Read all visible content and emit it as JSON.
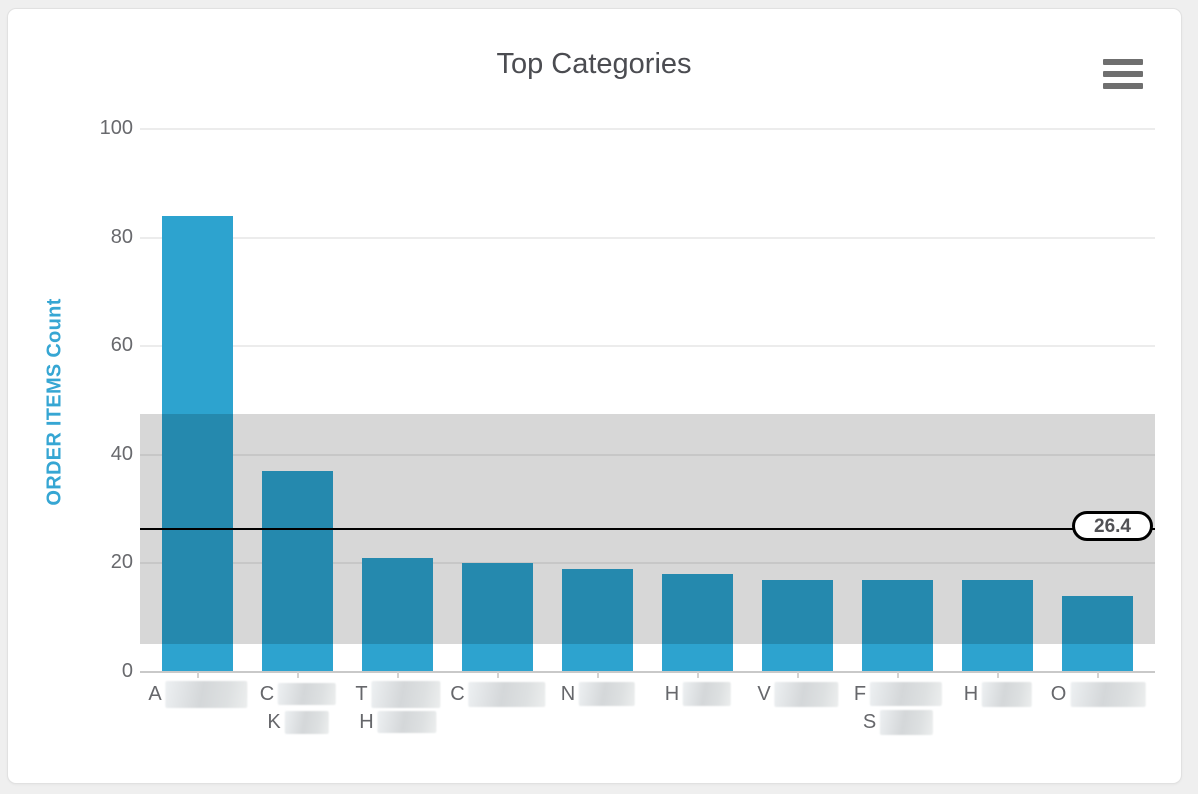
{
  "widget": {
    "title": "Top Categories",
    "menu_icon": "hamburger-icon"
  },
  "chart_data": {
    "type": "bar",
    "title": "Top Categories",
    "ylabel": "ORDER ITEMS Count",
    "xlabel": "",
    "ylim": [
      0,
      100
    ],
    "yticks": [
      0,
      20,
      40,
      60,
      80,
      100
    ],
    "ytick_labels": [
      "0",
      "20",
      "40",
      "60",
      "80",
      "100"
    ],
    "grid": "horizontal",
    "legend": "none",
    "bar_color": "#2da3cf",
    "values": [
      84,
      37,
      21,
      20,
      19,
      18,
      17,
      17,
      17,
      14
    ],
    "categories_redacted": true,
    "category_label_lines": [
      [
        "A"
      ],
      [
        "C",
        "K"
      ],
      [
        "T",
        "H"
      ],
      [
        "C"
      ],
      [
        "N"
      ],
      [
        "H"
      ],
      [
        "V"
      ],
      [
        "F",
        "S"
      ],
      [
        "H"
      ],
      [
        "O"
      ]
    ],
    "mean_line": {
      "value": 26.4,
      "label": "26.4",
      "color": "#000000"
    },
    "std_band": {
      "low": 5.2,
      "high": 47.6,
      "color": "rgba(0,0,0,0.155)"
    }
  },
  "redaction": {
    "box_sizes": [
      [
        [
          82,
          27
        ]
      ],
      [
        [
          58,
          22
        ],
        [
          44,
          23
        ]
      ],
      [
        [
          69,
          27
        ],
        [
          59,
          22
        ]
      ],
      [
        [
          77,
          25
        ]
      ],
      [
        [
          56,
          24
        ]
      ],
      [
        [
          48,
          24
        ]
      ],
      [
        [
          64,
          25
        ]
      ],
      [
        [
          72,
          24
        ],
        [
          53,
          25
        ]
      ],
      [
        [
          50,
          25
        ]
      ],
      [
        [
          75,
          25
        ]
      ]
    ]
  }
}
